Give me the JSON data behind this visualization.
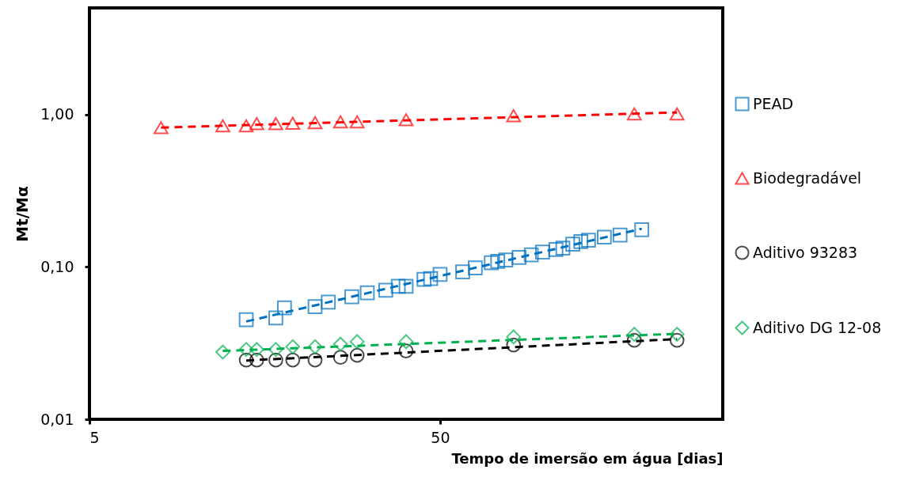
{
  "chart_data": {
    "type": "scatter",
    "xlabel": "Tempo de imersão em água [dias]",
    "ylabel": "Mt/Mα",
    "log": "xy",
    "xlim": [
      5,
      320
    ],
    "xticks": [
      5,
      50
    ],
    "ylim": [
      0.01,
      5
    ],
    "yticks": [
      {
        "value": 0.01,
        "label": "0,01"
      },
      {
        "value": 0.1,
        "label": "0,10"
      },
      {
        "value": 1,
        "label": "1,00"
      }
    ],
    "grid": false,
    "legend": "right",
    "series": [
      {
        "name": "PEAD",
        "color": "#0070c0",
        "marker": "square",
        "x": [
          14,
          17,
          18,
          22,
          24,
          28,
          31,
          35,
          38,
          40,
          45,
          47,
          50,
          58,
          63,
          70,
          73,
          77,
          84,
          91,
          98,
          107,
          112,
          119.5,
          126,
          132.5,
          147,
          163,
          188
        ],
        "values": [
          0.045,
          0.0462,
          0.0538,
          0.0549,
          0.0587,
          0.0636,
          0.0675,
          0.0702,
          0.0745,
          0.0745,
          0.0829,
          0.0839,
          0.0891,
          0.0927,
          0.0984,
          0.1065,
          0.1087,
          0.1109,
          0.1153,
          0.12,
          0.125,
          0.13,
          0.1327,
          0.1409,
          0.1465,
          0.1495,
          0.1567,
          0.1617,
          0.1752
        ]
      },
      {
        "name": "Biodegradável",
        "color": "#ff0000",
        "marker": "triangle",
        "x": [
          8,
          12,
          14,
          15,
          17,
          19,
          22,
          26,
          29,
          40,
          81,
          179,
          237
        ],
        "values": [
          0.819,
          0.843,
          0.843,
          0.87,
          0.87,
          0.877,
          0.884,
          0.895,
          0.895,
          0.923,
          0.98,
          1.008,
          1.008
        ]
      },
      {
        "name": "Aditivo 93283",
        "color": "#000000",
        "marker": "circle",
        "x": [
          14,
          15,
          17,
          19,
          22,
          26,
          29,
          40,
          81,
          179,
          237
        ],
        "values": [
          0.0245,
          0.0245,
          0.0245,
          0.0245,
          0.0245,
          0.0255,
          0.0263,
          0.0281,
          0.0307,
          0.033,
          0.033
        ]
      },
      {
        "name": "Aditivo DG 12-08",
        "color": "#00b050",
        "marker": "diamond",
        "x": [
          12,
          14,
          15,
          17,
          19,
          22,
          26,
          29,
          40,
          81,
          179,
          237
        ],
        "values": [
          0.0276,
          0.0287,
          0.0287,
          0.0287,
          0.0299,
          0.0299,
          0.0311,
          0.0323,
          0.0323,
          0.0347,
          0.0361,
          0.0361
        ]
      },
      {
        "type": "line",
        "color": "#0070c0",
        "line_style": "dashed",
        "x": [
          14,
          188
        ],
        "values": [
          0.0438,
          0.178
        ]
      },
      {
        "type": "line",
        "color": "#ff0000",
        "line_style": "dashed",
        "x": [
          8,
          237
        ],
        "values": [
          0.82,
          1.03
        ]
      },
      {
        "type": "line",
        "color": "#000000",
        "line_style": "dashed",
        "x": [
          14,
          237
        ],
        "values": [
          0.0243,
          0.0336
        ]
      },
      {
        "type": "line",
        "color": "#00b050",
        "line_style": "dashed",
        "x": [
          12,
          237
        ],
        "values": [
          0.0281,
          0.0364
        ]
      }
    ]
  }
}
